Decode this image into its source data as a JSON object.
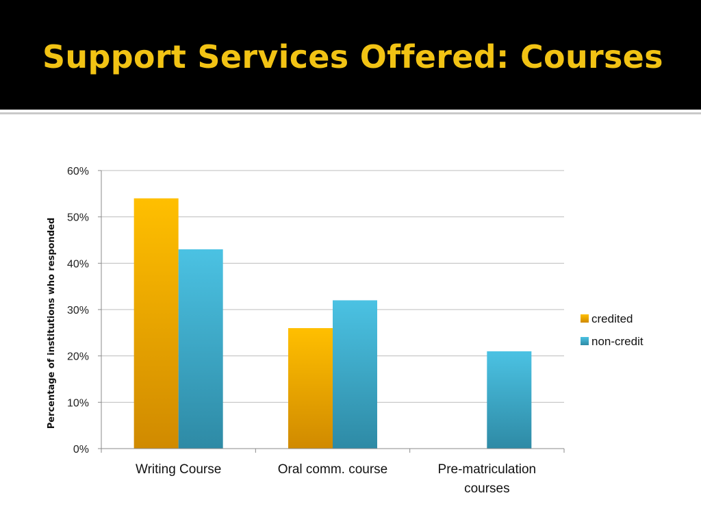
{
  "slide": {
    "title": "Support Services Offered: Courses"
  },
  "colors": {
    "title_band": "#000000",
    "title_text": "#f2c314",
    "credited_top": "#ffbf00",
    "credited_bottom": "#d08a00",
    "noncredit_top": "#4bc2e3",
    "noncredit_bottom": "#2e8aa5",
    "gridline": "#bdbdbd"
  },
  "chart_data": {
    "type": "bar",
    "title": "",
    "xlabel": "",
    "ylabel": "Percentage of institutions who responded",
    "ylim": [
      0,
      60
    ],
    "yticks": [
      0,
      10,
      20,
      30,
      40,
      50,
      60
    ],
    "ytick_labels": [
      "0%",
      "10%",
      "20%",
      "30%",
      "40%",
      "50%",
      "60%"
    ],
    "categories": [
      [
        "Writing Course"
      ],
      [
        "Oral comm. course"
      ],
      [
        "Pre-matriculation",
        "courses"
      ]
    ],
    "series": [
      {
        "name": "credited",
        "values": [
          54,
          26,
          0
        ]
      },
      {
        "name": "non-credit",
        "values": [
          43,
          32,
          21
        ]
      }
    ],
    "grid": true,
    "legend": "right"
  }
}
